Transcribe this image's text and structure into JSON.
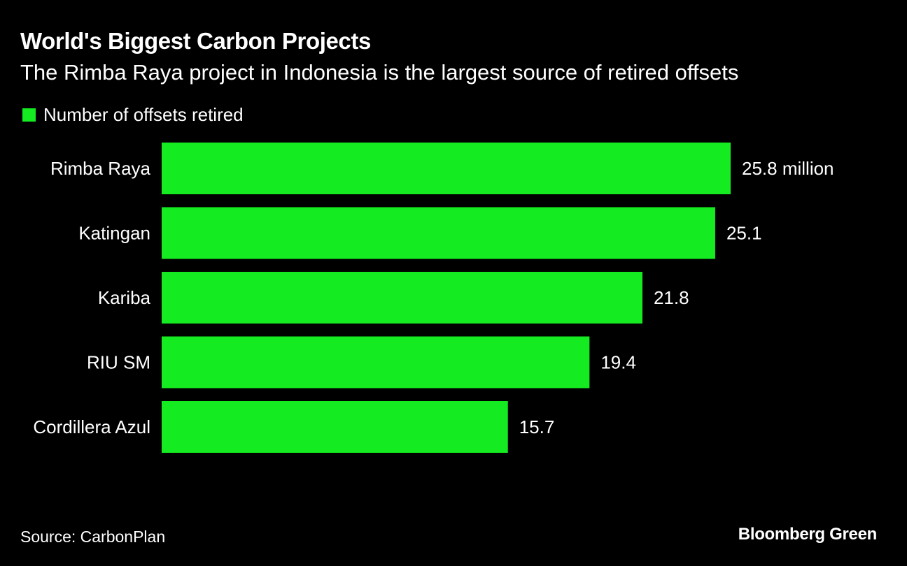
{
  "header": {
    "title": "World's Biggest Carbon Projects",
    "subtitle": "The Rimba Raya project in Indonesia is the largest source of retired offsets"
  },
  "footer": {
    "source": "Source: CarbonPlan",
    "brand": "Bloomberg Green"
  },
  "colors": {
    "background": "#000000",
    "bar": "#14eb20",
    "text": "#ffffff"
  },
  "chart_data": {
    "type": "bar",
    "orientation": "horizontal",
    "title": "World's Biggest Carbon Projects",
    "subtitle": "The Rimba Raya project in Indonesia is the largest source of retired offsets",
    "categories": [
      "Rimba Raya",
      "Katingan",
      "Kariba",
      "RIU SM",
      "Cordillera Azul"
    ],
    "series": [
      {
        "name": "Number of offsets retired",
        "values": [
          25.8,
          25.1,
          21.8,
          19.4,
          15.7
        ],
        "labels": [
          "25.8 million",
          "25.1",
          "21.8",
          "19.4",
          "15.7"
        ]
      }
    ],
    "xlim": [
      0,
      25.8
    ],
    "unit": "million",
    "grid": false,
    "legend": "top-left"
  }
}
